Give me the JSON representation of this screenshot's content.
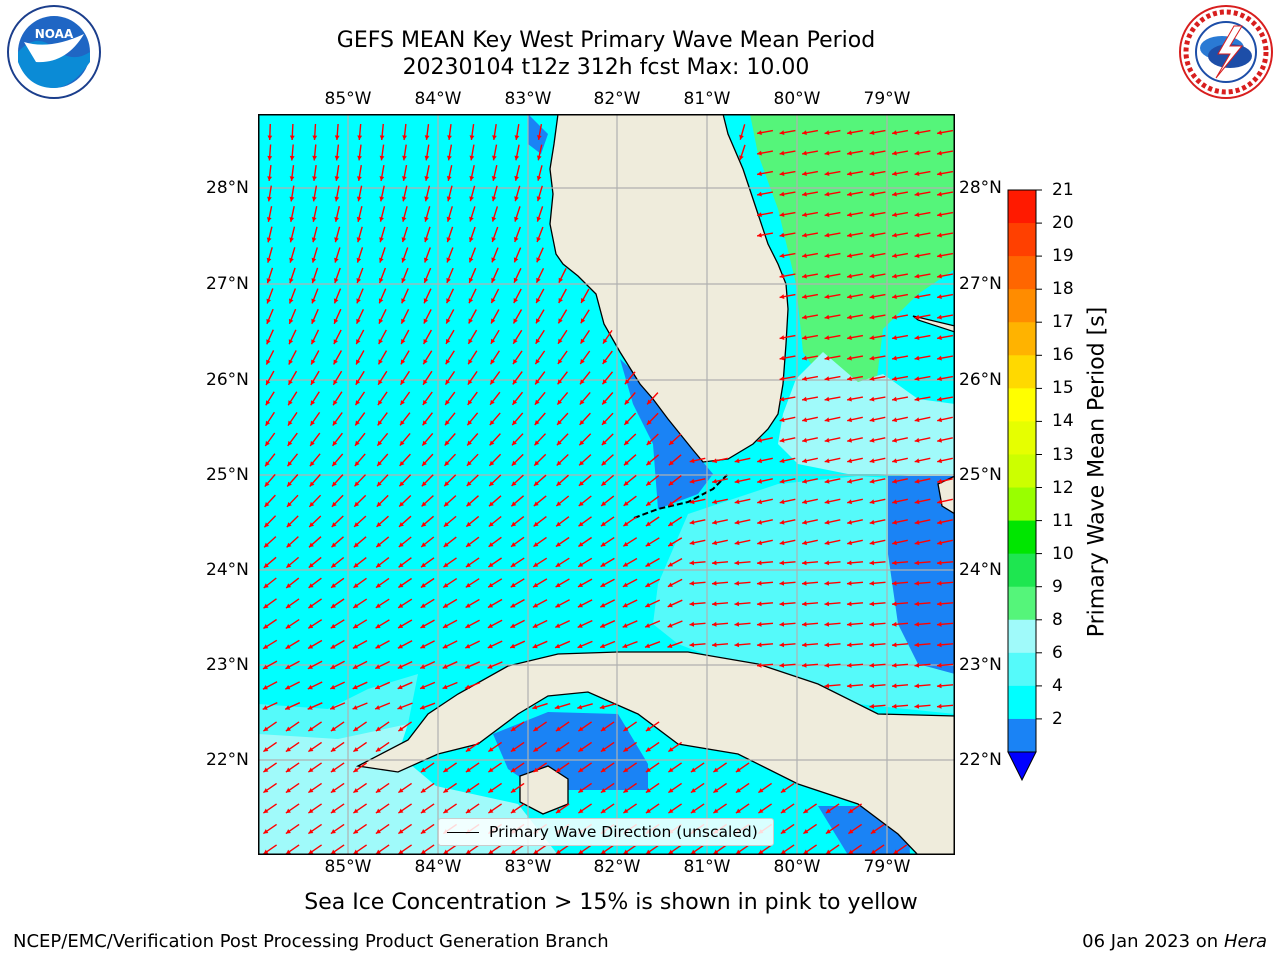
{
  "title_line1": "GEFS MEAN Key West Primary Wave Mean Period",
  "title_line2": "20230104 t12z 312h fcst   Max: 10.00",
  "logos": {
    "left": {
      "icon": "noaa-logo-icon",
      "text": "NOAA"
    },
    "right": {
      "icon": "nws-logo-icon",
      "text": "NATIONAL WEATHER SERVICE"
    }
  },
  "map": {
    "lon_labels": [
      "85°W",
      "84°W",
      "83°W",
      "82°W",
      "81°W",
      "80°W",
      "79°W"
    ],
    "lat_labels": [
      "28°N",
      "27°N",
      "26°N",
      "25°N",
      "24°N",
      "23°N",
      "22°N"
    ],
    "legend_label": "Primary Wave Direction (unscaled)",
    "colors": {
      "land": "#efecdc",
      "period_2_4": "#1a83f5",
      "period_4_6": "#00ffff",
      "period_6_8": "#55fafa",
      "period_8_9": "#a0fafa",
      "period_9_10": "#55f57a",
      "arrows": "#ff0000"
    }
  },
  "colorbar": {
    "title": "Primary Wave Mean Period [s]",
    "ticks": [
      "21",
      "20",
      "19",
      "18",
      "17",
      "16",
      "15",
      "14",
      "13",
      "12",
      "11",
      "10",
      "9",
      "8",
      "6",
      "4",
      "2"
    ],
    "colors": [
      "#ff1a00",
      "#ff4000",
      "#ff6600",
      "#ff8c00",
      "#ffb300",
      "#ffd900",
      "#ffff00",
      "#e6ff00",
      "#ccff00",
      "#99ff00",
      "#00e600",
      "#1ee650",
      "#55f57a",
      "#a0fafa",
      "#55fafa",
      "#00ffff",
      "#1a83f5"
    ],
    "underflow_color": "#0000ff"
  },
  "ice_note": "Sea Ice Concentration > 15% is shown in pink to yellow",
  "footer": {
    "left": "NCEP/EMC/Verification Post Processing Product Generation Branch",
    "right_prefix": "06 Jan 2023 on ",
    "right_host": "Hera"
  }
}
